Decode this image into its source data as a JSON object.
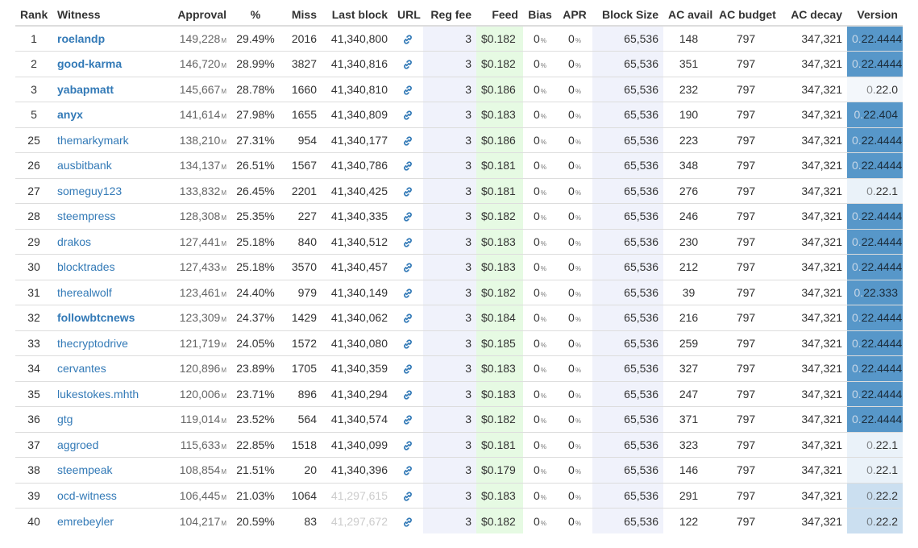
{
  "headers": {
    "rank": "Rank",
    "witness": "Witness",
    "approval": "Approval",
    "pct": "%",
    "miss": "Miss",
    "last_block": "Last block",
    "url": "URL",
    "reg_fee": "Reg fee",
    "feed": "Feed",
    "bias": "Bias",
    "apr": "APR",
    "block_size": "Block Size",
    "ac_avail": "AC avail",
    "ac_budget": "AC budget",
    "ac_decay": "AC decay",
    "version": "Version"
  },
  "units": {
    "approval": "M",
    "bias": "%",
    "apr": "%"
  },
  "icons": {
    "url": "link-icon"
  },
  "colors": {
    "link": "#337ab7",
    "feed_bg": "#e6fae3",
    "col_bg": "#f0f2fb",
    "version_current": "#5797c9"
  },
  "rows": [
    {
      "rank": "1",
      "witness": "roelandp",
      "bold": true,
      "approval": "149,228",
      "pct": "29.49%",
      "miss": "2016",
      "last_block": "41,340,800",
      "last_block_faded": false,
      "reg_fee": "3",
      "feed": "$0.182",
      "bias": "0",
      "apr": "0",
      "block_size": "65,536",
      "ac_avail": "148",
      "ac_budget": "797",
      "ac_decay": "347,321",
      "version": "22.4444",
      "version_class": "ver-cur"
    },
    {
      "rank": "2",
      "witness": "good-karma",
      "bold": true,
      "approval": "146,720",
      "pct": "28.99%",
      "miss": "3827",
      "last_block": "41,340,816",
      "last_block_faded": false,
      "reg_fee": "3",
      "feed": "$0.182",
      "bias": "0",
      "apr": "0",
      "block_size": "65,536",
      "ac_avail": "351",
      "ac_budget": "797",
      "ac_decay": "347,321",
      "version": "22.4444",
      "version_class": "ver-cur"
    },
    {
      "rank": "3",
      "witness": "yabapmatt",
      "bold": true,
      "approval": "145,667",
      "pct": "28.78%",
      "miss": "1660",
      "last_block": "41,340,810",
      "last_block_faded": false,
      "reg_fee": "3",
      "feed": "$0.186",
      "bias": "0",
      "apr": "0",
      "block_size": "65,536",
      "ac_avail": "232",
      "ac_budget": "797",
      "ac_decay": "347,321",
      "version": "22.0",
      "version_class": "ver-old3"
    },
    {
      "rank": "5",
      "witness": "anyx",
      "bold": true,
      "approval": "141,614",
      "pct": "27.98%",
      "miss": "1655",
      "last_block": "41,340,809",
      "last_block_faded": false,
      "reg_fee": "3",
      "feed": "$0.183",
      "bias": "0",
      "apr": "0",
      "block_size": "65,536",
      "ac_avail": "190",
      "ac_budget": "797",
      "ac_decay": "347,321",
      "version": "22.404",
      "version_class": "ver-cur"
    },
    {
      "rank": "25",
      "witness": "themarkymark",
      "bold": false,
      "approval": "138,210",
      "pct": "27.31%",
      "miss": "954",
      "last_block": "41,340,177",
      "last_block_faded": false,
      "reg_fee": "3",
      "feed": "$0.186",
      "bias": "0",
      "apr": "0",
      "block_size": "65,536",
      "ac_avail": "223",
      "ac_budget": "797",
      "ac_decay": "347,321",
      "version": "22.4444",
      "version_class": "ver-cur"
    },
    {
      "rank": "26",
      "witness": "ausbitbank",
      "bold": false,
      "approval": "134,137",
      "pct": "26.51%",
      "miss": "1567",
      "last_block": "41,340,786",
      "last_block_faded": false,
      "reg_fee": "3",
      "feed": "$0.181",
      "bias": "0",
      "apr": "0",
      "block_size": "65,536",
      "ac_avail": "348",
      "ac_budget": "797",
      "ac_decay": "347,321",
      "version": "22.4444",
      "version_class": "ver-cur"
    },
    {
      "rank": "27",
      "witness": "someguy123",
      "bold": false,
      "approval": "133,832",
      "pct": "26.45%",
      "miss": "2201",
      "last_block": "41,340,425",
      "last_block_faded": false,
      "reg_fee": "3",
      "feed": "$0.181",
      "bias": "0",
      "apr": "0",
      "block_size": "65,536",
      "ac_avail": "276",
      "ac_budget": "797",
      "ac_decay": "347,321",
      "version": "22.1",
      "version_class": "ver-old1"
    },
    {
      "rank": "28",
      "witness": "steempress",
      "bold": false,
      "approval": "128,308",
      "pct": "25.35%",
      "miss": "227",
      "last_block": "41,340,335",
      "last_block_faded": false,
      "reg_fee": "3",
      "feed": "$0.182",
      "bias": "0",
      "apr": "0",
      "block_size": "65,536",
      "ac_avail": "246",
      "ac_budget": "797",
      "ac_decay": "347,321",
      "version": "22.4444",
      "version_class": "ver-cur"
    },
    {
      "rank": "29",
      "witness": "drakos",
      "bold": false,
      "approval": "127,441",
      "pct": "25.18%",
      "miss": "840",
      "last_block": "41,340,512",
      "last_block_faded": false,
      "reg_fee": "3",
      "feed": "$0.183",
      "bias": "0",
      "apr": "0",
      "block_size": "65,536",
      "ac_avail": "230",
      "ac_budget": "797",
      "ac_decay": "347,321",
      "version": "22.4444",
      "version_class": "ver-cur"
    },
    {
      "rank": "30",
      "witness": "blocktrades",
      "bold": false,
      "approval": "127,433",
      "pct": "25.18%",
      "miss": "3570",
      "last_block": "41,340,457",
      "last_block_faded": false,
      "reg_fee": "3",
      "feed": "$0.183",
      "bias": "0",
      "apr": "0",
      "block_size": "65,536",
      "ac_avail": "212",
      "ac_budget": "797",
      "ac_decay": "347,321",
      "version": "22.4444",
      "version_class": "ver-cur"
    },
    {
      "rank": "31",
      "witness": "therealwolf",
      "bold": false,
      "approval": "123,461",
      "pct": "24.40%",
      "miss": "979",
      "last_block": "41,340,149",
      "last_block_faded": false,
      "reg_fee": "3",
      "feed": "$0.182",
      "bias": "0",
      "apr": "0",
      "block_size": "65,536",
      "ac_avail": "39",
      "ac_budget": "797",
      "ac_decay": "347,321",
      "version": "22.333",
      "version_class": "ver-cur"
    },
    {
      "rank": "32",
      "witness": "followbtcnews",
      "bold": true,
      "approval": "123,309",
      "pct": "24.37%",
      "miss": "1429",
      "last_block": "41,340,062",
      "last_block_faded": false,
      "reg_fee": "3",
      "feed": "$0.184",
      "bias": "0",
      "apr": "0",
      "block_size": "65,536",
      "ac_avail": "216",
      "ac_budget": "797",
      "ac_decay": "347,321",
      "version": "22.4444",
      "version_class": "ver-cur"
    },
    {
      "rank": "33",
      "witness": "thecryptodrive",
      "bold": false,
      "approval": "121,719",
      "pct": "24.05%",
      "miss": "1572",
      "last_block": "41,340,080",
      "last_block_faded": false,
      "reg_fee": "3",
      "feed": "$0.185",
      "bias": "0",
      "apr": "0",
      "block_size": "65,536",
      "ac_avail": "259",
      "ac_budget": "797",
      "ac_decay": "347,321",
      "version": "22.4444",
      "version_class": "ver-cur"
    },
    {
      "rank": "34",
      "witness": "cervantes",
      "bold": false,
      "approval": "120,896",
      "pct": "23.89%",
      "miss": "1705",
      "last_block": "41,340,359",
      "last_block_faded": false,
      "reg_fee": "3",
      "feed": "$0.183",
      "bias": "0",
      "apr": "0",
      "block_size": "65,536",
      "ac_avail": "327",
      "ac_budget": "797",
      "ac_decay": "347,321",
      "version": "22.4444",
      "version_class": "ver-cur"
    },
    {
      "rank": "35",
      "witness": "lukestokes.mhth",
      "bold": false,
      "approval": "120,006",
      "pct": "23.71%",
      "miss": "896",
      "last_block": "41,340,294",
      "last_block_faded": false,
      "reg_fee": "3",
      "feed": "$0.183",
      "bias": "0",
      "apr": "0",
      "block_size": "65,536",
      "ac_avail": "247",
      "ac_budget": "797",
      "ac_decay": "347,321",
      "version": "22.4444",
      "version_class": "ver-cur"
    },
    {
      "rank": "36",
      "witness": "gtg",
      "bold": false,
      "approval": "119,014",
      "pct": "23.52%",
      "miss": "564",
      "last_block": "41,340,574",
      "last_block_faded": false,
      "reg_fee": "3",
      "feed": "$0.182",
      "bias": "0",
      "apr": "0",
      "block_size": "65,536",
      "ac_avail": "371",
      "ac_budget": "797",
      "ac_decay": "347,321",
      "version": "22.4444",
      "version_class": "ver-cur"
    },
    {
      "rank": "37",
      "witness": "aggroed",
      "bold": false,
      "approval": "115,633",
      "pct": "22.85%",
      "miss": "1518",
      "last_block": "41,340,099",
      "last_block_faded": false,
      "reg_fee": "3",
      "feed": "$0.181",
      "bias": "0",
      "apr": "0",
      "block_size": "65,536",
      "ac_avail": "323",
      "ac_budget": "797",
      "ac_decay": "347,321",
      "version": "22.1",
      "version_class": "ver-old1"
    },
    {
      "rank": "38",
      "witness": "steempeak",
      "bold": false,
      "approval": "108,854",
      "pct": "21.51%",
      "miss": "20",
      "last_block": "41,340,396",
      "last_block_faded": false,
      "reg_fee": "3",
      "feed": "$0.179",
      "bias": "0",
      "apr": "0",
      "block_size": "65,536",
      "ac_avail": "146",
      "ac_budget": "797",
      "ac_decay": "347,321",
      "version": "22.1",
      "version_class": "ver-old1"
    },
    {
      "rank": "39",
      "witness": "ocd-witness",
      "bold": false,
      "approval": "106,445",
      "pct": "21.03%",
      "miss": "1064",
      "last_block": "41,297,615",
      "last_block_faded": true,
      "reg_fee": "3",
      "feed": "$0.183",
      "bias": "0",
      "apr": "0",
      "block_size": "65,536",
      "ac_avail": "291",
      "ac_budget": "797",
      "ac_decay": "347,321",
      "version": "22.2",
      "version_class": "ver-old2"
    },
    {
      "rank": "40",
      "witness": "emrebeyler",
      "bold": false,
      "approval": "104,217",
      "pct": "20.59%",
      "miss": "83",
      "last_block": "41,297,672",
      "last_block_faded": true,
      "reg_fee": "3",
      "feed": "$0.182",
      "bias": "0",
      "apr": "0",
      "block_size": "65,536",
      "ac_avail": "122",
      "ac_budget": "797",
      "ac_decay": "347,321",
      "version": "22.2",
      "version_class": "ver-old2"
    }
  ]
}
